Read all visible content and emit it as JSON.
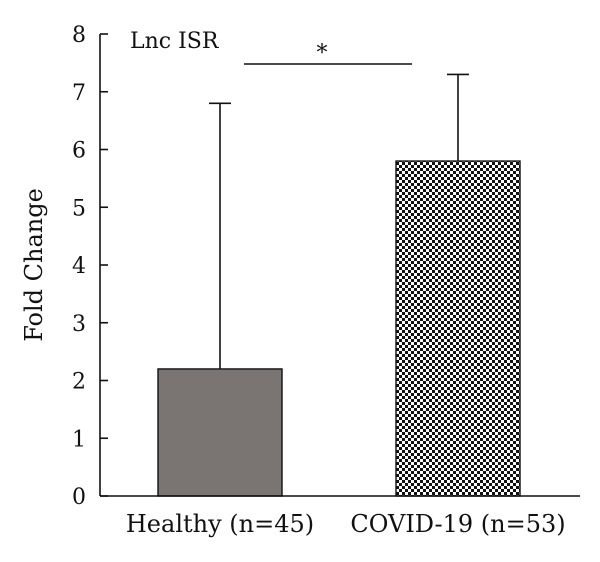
{
  "chart_data": {
    "type": "bar",
    "title": "Lnc ISR",
    "xlabel": "",
    "ylabel": "Fold Change",
    "ylim": [
      0,
      8
    ],
    "yticks": [
      0,
      1,
      2,
      3,
      4,
      5,
      6,
      7,
      8
    ],
    "categories": [
      "Healthy (n=45)",
      "COVID-19 (n=53)"
    ],
    "values": [
      2.2,
      5.8
    ],
    "error_upper": [
      6.8,
      7.3
    ],
    "bar_styles": [
      "solid-gray",
      "checkered"
    ],
    "colors": {
      "healthy_fill": "#7a7572",
      "covid_pattern_dark": "#111111",
      "covid_pattern_light": "#ffffff",
      "axis": "#111111"
    },
    "significance": {
      "between": [
        0,
        1
      ],
      "label": "*"
    },
    "grid": false,
    "legend": "none"
  }
}
